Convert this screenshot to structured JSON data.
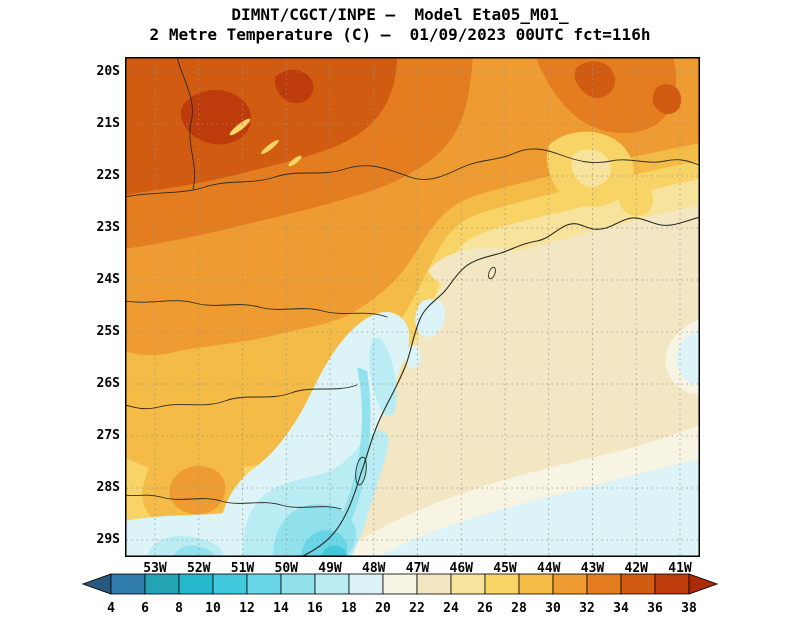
{
  "title": {
    "line1": "DIMNT/CGCT/INPE —  Model Eta05_M01_",
    "line2": "2 Metre Temperature (C) —  01/09/2023 00UTC fct=116h"
  },
  "map": {
    "lat_labels": [
      "20S",
      "21S",
      "22S",
      "23S",
      "24S",
      "25S",
      "26S",
      "27S",
      "28S",
      "29S"
    ],
    "lon_labels": [
      "53W",
      "52W",
      "51W",
      "50W",
      "49W",
      "48W",
      "47W",
      "46W",
      "45W",
      "44W",
      "43W",
      "42W",
      "41W"
    ]
  },
  "colorbar": {
    "labels": [
      "4",
      "6",
      "8",
      "10",
      "12",
      "14",
      "16",
      "18",
      "20",
      "22",
      "24",
      "26",
      "28",
      "30",
      "32",
      "34",
      "36",
      "38"
    ],
    "segment_colors": [
      "#2F7CAD",
      "#23A3B4",
      "#25B8CD",
      "#41C8DC",
      "#69D6E7",
      "#92E2EE",
      "#BAECF4",
      "#DCF4F8",
      "#F8F4E4",
      "#F2E7C2",
      "#F7E39B",
      "#F8D366",
      "#F4BB47",
      "#EE9C31",
      "#E37D20",
      "#D25B12",
      "#BE3B0B"
    ],
    "arrow_left_color": "#27597F",
    "arrow_right_color": "#A92C07",
    "units": "C"
  },
  "map_style": {
    "gridline_color": "#999188",
    "border_color": "#2b2b1f",
    "frame_color": "#000000"
  }
}
